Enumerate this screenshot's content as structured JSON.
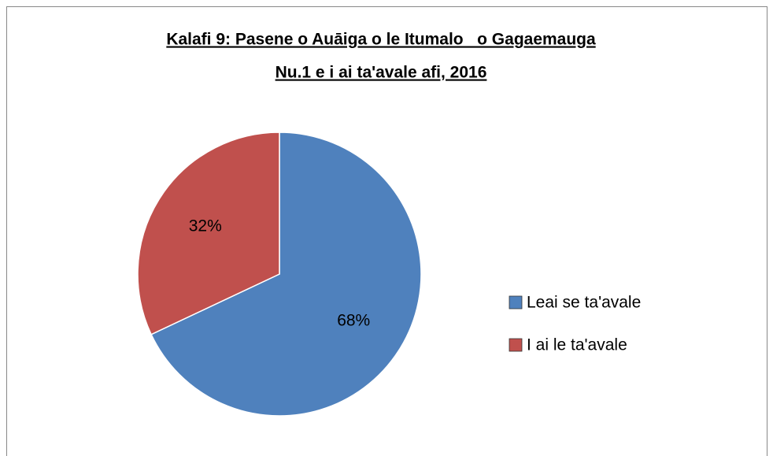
{
  "chart_data": {
    "type": "pie",
    "title": [
      "Kalafi 9: Pasene o Auāiga o le Itumalo   o Gagaemauga",
      "Nu.1 e i ai ta'avale afi, 2016"
    ],
    "categories": [
      "Leai se ta'avale",
      "I ai le ta'avale"
    ],
    "values": [
      68,
      32
    ],
    "value_labels": [
      "68%",
      "32%"
    ],
    "colors": [
      "#4f81bd",
      "#c0504d"
    ],
    "legend": "right"
  }
}
